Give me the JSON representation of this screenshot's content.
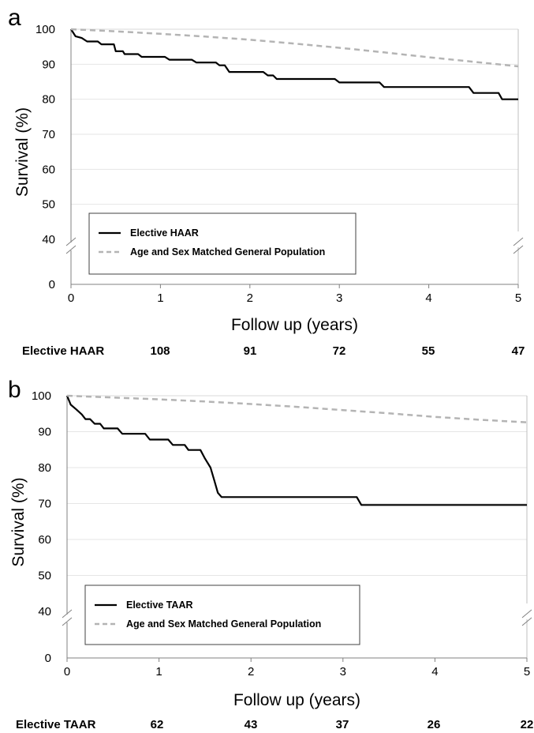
{
  "chart_data": [
    {
      "type": "line",
      "panel_label": "a",
      "xlabel": "Follow up (years)",
      "ylabel": "Survival (%)",
      "xlim": [
        0,
        5
      ],
      "ylim_ticks": [
        0,
        40,
        50,
        60,
        70,
        80,
        90,
        100
      ],
      "axis_break": true,
      "x_ticks": [
        "0",
        "1",
        "2",
        "3",
        "4",
        "5"
      ],
      "grid": "horizontal",
      "legend_position": "bottom-left",
      "series": [
        {
          "name": "Elective HAAR",
          "style": "solid",
          "color": "#000000",
          "step": true,
          "points": [
            [
              0,
              100
            ],
            [
              0.05,
              98
            ],
            [
              0.12,
              97.5
            ],
            [
              0.18,
              96.5
            ],
            [
              0.3,
              96.5
            ],
            [
              0.34,
              95.7
            ],
            [
              0.48,
              95.7
            ],
            [
              0.5,
              93.7
            ],
            [
              0.58,
              93.7
            ],
            [
              0.6,
              92.9
            ],
            [
              0.75,
              92.9
            ],
            [
              0.79,
              92.1
            ],
            [
              1.05,
              92.1
            ],
            [
              1.1,
              91.3
            ],
            [
              1.35,
              91.3
            ],
            [
              1.4,
              90.5
            ],
            [
              1.62,
              90.5
            ],
            [
              1.66,
              89.7
            ],
            [
              1.72,
              89.7
            ],
            [
              1.77,
              87.8
            ],
            [
              2.15,
              87.8
            ],
            [
              2.2,
              86.8
            ],
            [
              2.26,
              86.8
            ],
            [
              2.3,
              85.8
            ],
            [
              2.95,
              85.8
            ],
            [
              3.0,
              84.8
            ],
            [
              3.45,
              84.8
            ],
            [
              3.5,
              83.5
            ],
            [
              4.45,
              83.5
            ],
            [
              4.5,
              81.8
            ],
            [
              4.78,
              81.8
            ],
            [
              4.82,
              80
            ],
            [
              5,
              80
            ]
          ]
        },
        {
          "name": "Age and Sex Matched General Population",
          "style": "dashed",
          "color": "#b4b4b4",
          "points": [
            [
              0,
              100
            ],
            [
              0.5,
              99.4
            ],
            [
              1,
              98.7
            ],
            [
              1.5,
              97.9
            ],
            [
              2,
              97.0
            ],
            [
              2.5,
              95.9
            ],
            [
              3,
              94.7
            ],
            [
              3.5,
              93.4
            ],
            [
              4,
              92.0
            ],
            [
              4.5,
              90.7
            ],
            [
              5,
              89.4
            ]
          ]
        }
      ],
      "risk_table": {
        "label": "Elective HAAR",
        "values": [
          "108",
          "91",
          "72",
          "55",
          "47"
        ]
      }
    },
    {
      "type": "line",
      "panel_label": "b",
      "xlabel": "Follow up (years)",
      "ylabel": "Survival (%)",
      "xlim": [
        0,
        5
      ],
      "ylim_ticks": [
        0,
        40,
        50,
        60,
        70,
        80,
        90,
        100
      ],
      "axis_break": true,
      "x_ticks": [
        "0",
        "1",
        "2",
        "3",
        "4",
        "5"
      ],
      "grid": "horizontal",
      "legend_position": "bottom-left",
      "series": [
        {
          "name": "Elective TAAR",
          "style": "solid",
          "color": "#000000",
          "step": true,
          "points": [
            [
              0,
              100
            ],
            [
              0.04,
              97.5
            ],
            [
              0.1,
              96.2
            ],
            [
              0.16,
              94.8
            ],
            [
              0.2,
              93.5
            ],
            [
              0.25,
              93.5
            ],
            [
              0.3,
              92.2
            ],
            [
              0.36,
              92.2
            ],
            [
              0.4,
              90.9
            ],
            [
              0.55,
              90.9
            ],
            [
              0.6,
              89.4
            ],
            [
              0.85,
              89.4
            ],
            [
              0.9,
              87.8
            ],
            [
              1.1,
              87.8
            ],
            [
              1.15,
              86.3
            ],
            [
              1.28,
              86.3
            ],
            [
              1.32,
              84.9
            ],
            [
              1.45,
              84.9
            ],
            [
              1.5,
              82.5
            ],
            [
              1.56,
              80
            ],
            [
              1.6,
              76.5
            ],
            [
              1.64,
              73
            ],
            [
              1.68,
              71.8
            ],
            [
              3.15,
              71.8
            ],
            [
              3.2,
              69.6
            ],
            [
              5,
              69.6
            ]
          ]
        },
        {
          "name": "Age and Sex Matched General Population",
          "style": "dashed",
          "color": "#b4b4b4",
          "points": [
            [
              0,
              100
            ],
            [
              0.5,
              99.5
            ],
            [
              1,
              99.0
            ],
            [
              1.5,
              98.4
            ],
            [
              2,
              97.7
            ],
            [
              2.5,
              96.9
            ],
            [
              3,
              96.0
            ],
            [
              3.5,
              95.1
            ],
            [
              4,
              94.1
            ],
            [
              4.5,
              93.3
            ],
            [
              5,
              92.6
            ]
          ]
        }
      ],
      "risk_table": {
        "label": "Elective TAAR",
        "values": [
          "62",
          "43",
          "37",
          "26",
          "22"
        ]
      }
    }
  ]
}
